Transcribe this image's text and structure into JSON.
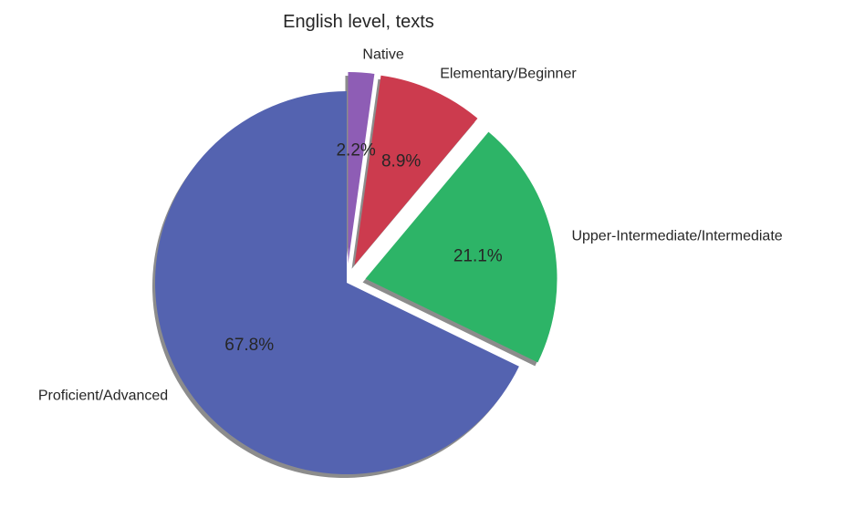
{
  "chart_data": {
    "type": "pie",
    "title": "English level, texts",
    "categories": [
      "Proficient/Advanced",
      "Upper-Intermediate/Intermediate",
      "Elementary/Beginner",
      "Native"
    ],
    "values": [
      67.8,
      21.1,
      8.9,
      2.2
    ],
    "value_labels": [
      "67.8%",
      "21.1%",
      "8.9%",
      "2.2%"
    ],
    "colors": [
      "#5463b0",
      "#2db467",
      "#cc3b4e",
      "#8e5db5"
    ],
    "exploded": [
      false,
      true,
      true,
      true
    ],
    "shadow": true,
    "start_angle": "top (90°), counterclockwise"
  }
}
